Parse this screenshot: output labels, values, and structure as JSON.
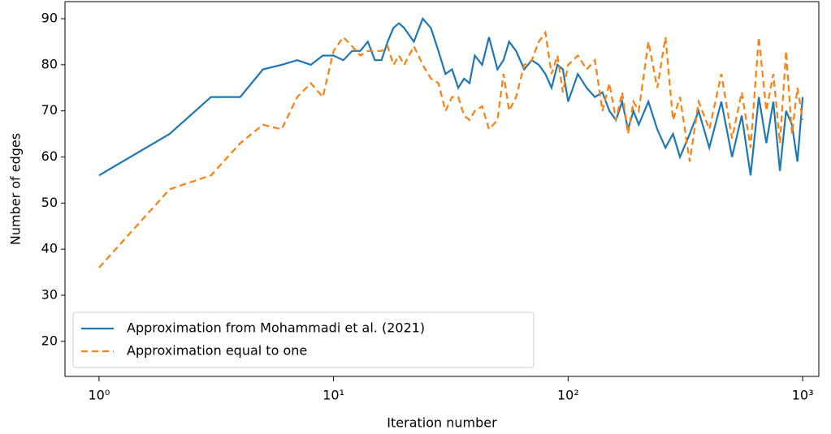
{
  "chart_data": {
    "type": "line",
    "xlabel": "Iteration number",
    "ylabel": "Number of edges",
    "x": [
      1,
      2,
      3,
      4,
      5,
      6,
      7,
      8,
      9,
      10,
      11,
      12,
      13,
      14,
      15,
      16,
      17,
      18,
      19,
      20,
      22,
      24,
      26,
      28,
      30,
      32,
      34,
      36,
      38,
      40,
      43,
      46,
      50,
      53,
      56,
      60,
      65,
      70,
      75,
      80,
      85,
      90,
      95,
      100,
      110,
      120,
      130,
      140,
      150,
      160,
      170,
      180,
      190,
      200,
      220,
      240,
      260,
      280,
      300,
      330,
      360,
      400,
      450,
      500,
      550,
      600,
      650,
      700,
      750,
      800,
      850,
      900,
      950,
      1000
    ],
    "series": [
      {
        "name": "Approximation from Mohammadi et al. (2021)",
        "color": "#1f77b4",
        "dash": false,
        "values": [
          56,
          65,
          73,
          73,
          79,
          80,
          81,
          80,
          82,
          82,
          81,
          83,
          83,
          85,
          81,
          81,
          85,
          88,
          89,
          88,
          85,
          90,
          88,
          83,
          78,
          79,
          75,
          77,
          76,
          82,
          80,
          86,
          79,
          81,
          85,
          83,
          79,
          81,
          80,
          78,
          75,
          80,
          79,
          72,
          78,
          75,
          73,
          74,
          70,
          68,
          72,
          66,
          70,
          67,
          72,
          66,
          62,
          65,
          60,
          65,
          70,
          62,
          72,
          60,
          69,
          56,
          73,
          63,
          72,
          57,
          70,
          67,
          59,
          73
        ]
      },
      {
        "name": "Approximation equal to one",
        "color": "#ff7f0e",
        "dash": true,
        "values": [
          36,
          53,
          56,
          63,
          67,
          66,
          73,
          76,
          73,
          83,
          86,
          84,
          82,
          83,
          83,
          83,
          84,
          80,
          82,
          80,
          84,
          80,
          77,
          76,
          70,
          73,
          73,
          69,
          68,
          70,
          71,
          66,
          68,
          78,
          70,
          73,
          80,
          81,
          85,
          87,
          78,
          82,
          74,
          80,
          82,
          79,
          81,
          70,
          76,
          68,
          74,
          65,
          72,
          70,
          85,
          75,
          86,
          68,
          73,
          59,
          72,
          66,
          78,
          64,
          74,
          62,
          86,
          70,
          78,
          63,
          83,
          65,
          75,
          68
        ]
      }
    ],
    "xscale": "log",
    "xlim": [
      0.716,
      1172
    ],
    "xticks": [
      {
        "value": 1,
        "label": "10⁰"
      },
      {
        "value": 10,
        "label": "10¹"
      },
      {
        "value": 100,
        "label": "10²"
      },
      {
        "value": 1000,
        "label": "10³"
      }
    ],
    "ylim": [
      12.4,
      93.7
    ],
    "yticks": [
      20,
      30,
      40,
      50,
      60,
      70,
      80,
      90
    ],
    "legend": "lower left"
  }
}
